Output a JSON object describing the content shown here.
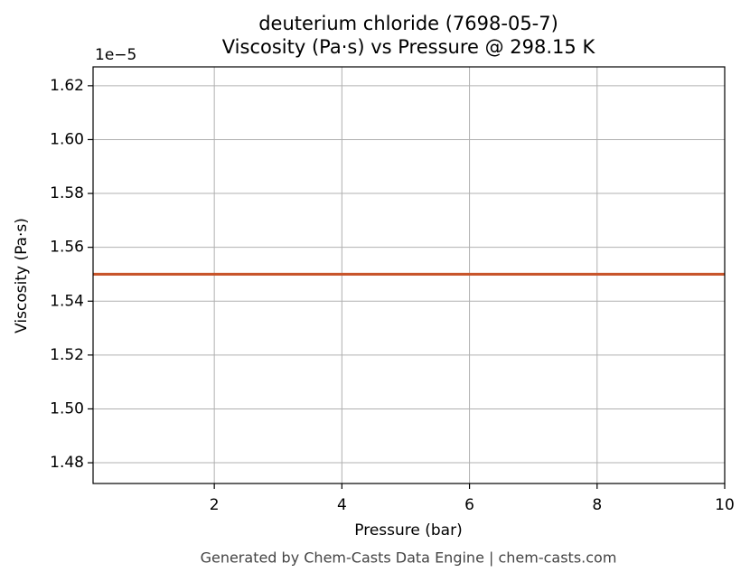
{
  "chart_data": {
    "type": "line",
    "title": "deuterium chloride (7698-05-7)",
    "subtitle": "Viscosity (Pa·s) vs Pressure @ 298.15 K",
    "x_label": "Pressure (bar)",
    "y_label": "Viscosity (Pa·s)",
    "y_offset_label": "1e−5",
    "footer": "Generated by Chem-Casts Data Engine | chem-casts.com",
    "x": [
      0.1,
      10
    ],
    "series": [
      {
        "name": "Viscosity",
        "color": "#c8552b",
        "values": [
          1.55,
          1.55
        ]
      }
    ],
    "xlim": [
      0.1,
      10
    ],
    "xticks": [
      2,
      4,
      6,
      8,
      10
    ],
    "ylim": [
      1.4723,
      1.627
    ],
    "yticks": [
      {
        "value": 1.48,
        "label": "1.48"
      },
      {
        "value": 1.5,
        "label": "1.50"
      },
      1.52,
      1.54,
      1.56,
      1.58,
      {
        "value": 1.6,
        "label": "1.60"
      },
      1.62
    ],
    "grid": true
  }
}
